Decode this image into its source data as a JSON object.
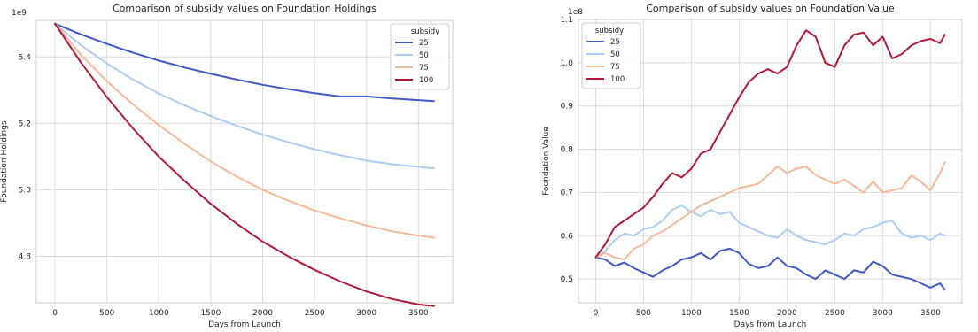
{
  "chart_data": [
    {
      "type": "line",
      "title": "Comparison of subsidy values on Foundation Holdings",
      "xlabel": "Days from Launch",
      "ylabel": "Foundation Holdings",
      "y_offset_label": "1e9",
      "xlim": [
        -180,
        3830
      ],
      "ylim": [
        4.66,
        5.51
      ],
      "xticks": [
        0,
        500,
        1000,
        1500,
        2000,
        2500,
        3000,
        3500
      ],
      "yticks": [
        4.8,
        5.0,
        5.2,
        5.4
      ],
      "ytick_labels": [
        "4.8",
        "5.0",
        "5.2",
        "5.4"
      ],
      "grid": true,
      "legend": {
        "title": "subsidy",
        "position": "top-right"
      },
      "series": [
        {
          "name": "25",
          "color": "#4257c9",
          "x": [
            0,
            250,
            500,
            750,
            1000,
            1250,
            1500,
            1750,
            2000,
            2250,
            2500,
            2750,
            3000,
            3250,
            3500,
            3650
          ],
          "y": [
            5.5,
            5.468,
            5.439,
            5.413,
            5.389,
            5.368,
            5.349,
            5.332,
            5.316,
            5.303,
            5.291,
            5.281,
            5.281,
            5.275,
            5.27,
            5.267
          ]
        },
        {
          "name": "50",
          "color": "#aecbf3",
          "x": [
            0,
            250,
            500,
            750,
            1000,
            1250,
            1500,
            1750,
            2000,
            2250,
            2500,
            2750,
            3000,
            3250,
            3500,
            3650
          ],
          "y": [
            5.5,
            5.435,
            5.38,
            5.332,
            5.29,
            5.254,
            5.222,
            5.193,
            5.166,
            5.143,
            5.122,
            5.104,
            5.088,
            5.077,
            5.069,
            5.065
          ]
        },
        {
          "name": "75",
          "color": "#f5b89b",
          "x": [
            0,
            250,
            500,
            750,
            1000,
            1250,
            1500,
            1750,
            2000,
            2250,
            2500,
            2750,
            3000,
            3250,
            3500,
            3650
          ],
          "y": [
            5.5,
            5.406,
            5.327,
            5.257,
            5.195,
            5.138,
            5.085,
            5.04,
            5.0,
            4.967,
            4.938,
            4.914,
            4.893,
            4.875,
            4.862,
            4.856
          ]
        },
        {
          "name": "100",
          "color": "#b3193a",
          "x": [
            0,
            250,
            500,
            750,
            1000,
            1250,
            1500,
            1750,
            2000,
            2250,
            2500,
            2750,
            3000,
            3250,
            3500,
            3650
          ],
          "y": [
            5.5,
            5.383,
            5.279,
            5.185,
            5.1,
            5.026,
            4.958,
            4.898,
            4.844,
            4.799,
            4.759,
            4.724,
            4.694,
            4.671,
            4.655,
            4.65
          ]
        }
      ]
    },
    {
      "type": "line",
      "title": "Comparison of subsidy values on Foundation Value",
      "xlabel": "Days from Launch",
      "ylabel": "Foundation Value",
      "y_offset_label": "1e8",
      "xlim": [
        -180,
        3830
      ],
      "ylim": [
        0.445,
        1.1
      ],
      "xticks": [
        0,
        500,
        1000,
        1500,
        2000,
        2500,
        3000,
        3500
      ],
      "yticks": [
        0.5,
        0.6,
        0.7,
        0.8,
        0.9,
        1.0,
        1.1
      ],
      "ytick_labels": [
        "0.5",
        "0.6",
        "0.7",
        "0.8",
        "0.9",
        "1.0",
        "1.1"
      ],
      "grid": true,
      "legend": {
        "title": "subsidy",
        "position": "top-left"
      },
      "series": [
        {
          "name": "25",
          "color": "#4257c9",
          "x": [
            0,
            100,
            200,
            300,
            400,
            500,
            600,
            700,
            800,
            900,
            1000,
            1100,
            1200,
            1300,
            1400,
            1500,
            1600,
            1700,
            1800,
            1900,
            2000,
            2100,
            2200,
            2300,
            2400,
            2500,
            2600,
            2700,
            2800,
            2900,
            3000,
            3100,
            3200,
            3300,
            3400,
            3500,
            3600,
            3650
          ],
          "y": [
            0.55,
            0.545,
            0.53,
            0.538,
            0.525,
            0.515,
            0.505,
            0.52,
            0.53,
            0.545,
            0.55,
            0.56,
            0.545,
            0.565,
            0.57,
            0.56,
            0.535,
            0.525,
            0.53,
            0.55,
            0.53,
            0.525,
            0.51,
            0.5,
            0.52,
            0.51,
            0.5,
            0.52,
            0.515,
            0.54,
            0.53,
            0.51,
            0.505,
            0.5,
            0.49,
            0.48,
            0.49,
            0.475
          ]
        },
        {
          "name": "50",
          "color": "#aecbf3",
          "x": [
            0,
            100,
            200,
            300,
            400,
            500,
            600,
            700,
            800,
            900,
            1000,
            1100,
            1200,
            1300,
            1400,
            1500,
            1600,
            1700,
            1800,
            1900,
            2000,
            2100,
            2200,
            2300,
            2400,
            2500,
            2600,
            2700,
            2800,
            2900,
            3000,
            3100,
            3200,
            3300,
            3400,
            3500,
            3600,
            3650
          ],
          "y": [
            0.55,
            0.565,
            0.59,
            0.605,
            0.6,
            0.615,
            0.62,
            0.635,
            0.66,
            0.67,
            0.655,
            0.645,
            0.66,
            0.65,
            0.655,
            0.63,
            0.62,
            0.61,
            0.6,
            0.595,
            0.615,
            0.6,
            0.59,
            0.585,
            0.58,
            0.59,
            0.605,
            0.6,
            0.615,
            0.62,
            0.63,
            0.635,
            0.605,
            0.595,
            0.6,
            0.59,
            0.605,
            0.6
          ]
        },
        {
          "name": "75",
          "color": "#f5b89b",
          "x": [
            0,
            100,
            200,
            300,
            400,
            500,
            600,
            700,
            800,
            900,
            1000,
            1100,
            1200,
            1300,
            1400,
            1500,
            1600,
            1700,
            1800,
            1900,
            2000,
            2100,
            2200,
            2300,
            2400,
            2500,
            2600,
            2700,
            2800,
            2900,
            3000,
            3100,
            3200,
            3300,
            3400,
            3500,
            3600,
            3650
          ],
          "y": [
            0.55,
            0.56,
            0.55,
            0.545,
            0.57,
            0.58,
            0.6,
            0.61,
            0.625,
            0.64,
            0.655,
            0.67,
            0.68,
            0.69,
            0.7,
            0.71,
            0.715,
            0.72,
            0.74,
            0.76,
            0.745,
            0.755,
            0.76,
            0.74,
            0.73,
            0.72,
            0.73,
            0.715,
            0.7,
            0.725,
            0.7,
            0.705,
            0.71,
            0.74,
            0.725,
            0.705,
            0.745,
            0.77
          ]
        },
        {
          "name": "100",
          "color": "#b3193a",
          "x": [
            0,
            100,
            200,
            300,
            400,
            500,
            600,
            700,
            800,
            900,
            1000,
            1100,
            1200,
            1300,
            1400,
            1500,
            1600,
            1700,
            1800,
            1900,
            2000,
            2100,
            2200,
            2300,
            2400,
            2500,
            2600,
            2700,
            2800,
            2900,
            3000,
            3100,
            3200,
            3300,
            3400,
            3500,
            3600,
            3650
          ],
          "y": [
            0.55,
            0.58,
            0.62,
            0.635,
            0.65,
            0.665,
            0.69,
            0.72,
            0.745,
            0.735,
            0.755,
            0.79,
            0.8,
            0.84,
            0.88,
            0.92,
            0.955,
            0.975,
            0.985,
            0.975,
            0.99,
            1.04,
            1.075,
            1.06,
            1.0,
            0.99,
            1.04,
            1.065,
            1.07,
            1.04,
            1.06,
            1.01,
            1.02,
            1.04,
            1.05,
            1.055,
            1.045,
            1.065
          ]
        }
      ]
    }
  ]
}
